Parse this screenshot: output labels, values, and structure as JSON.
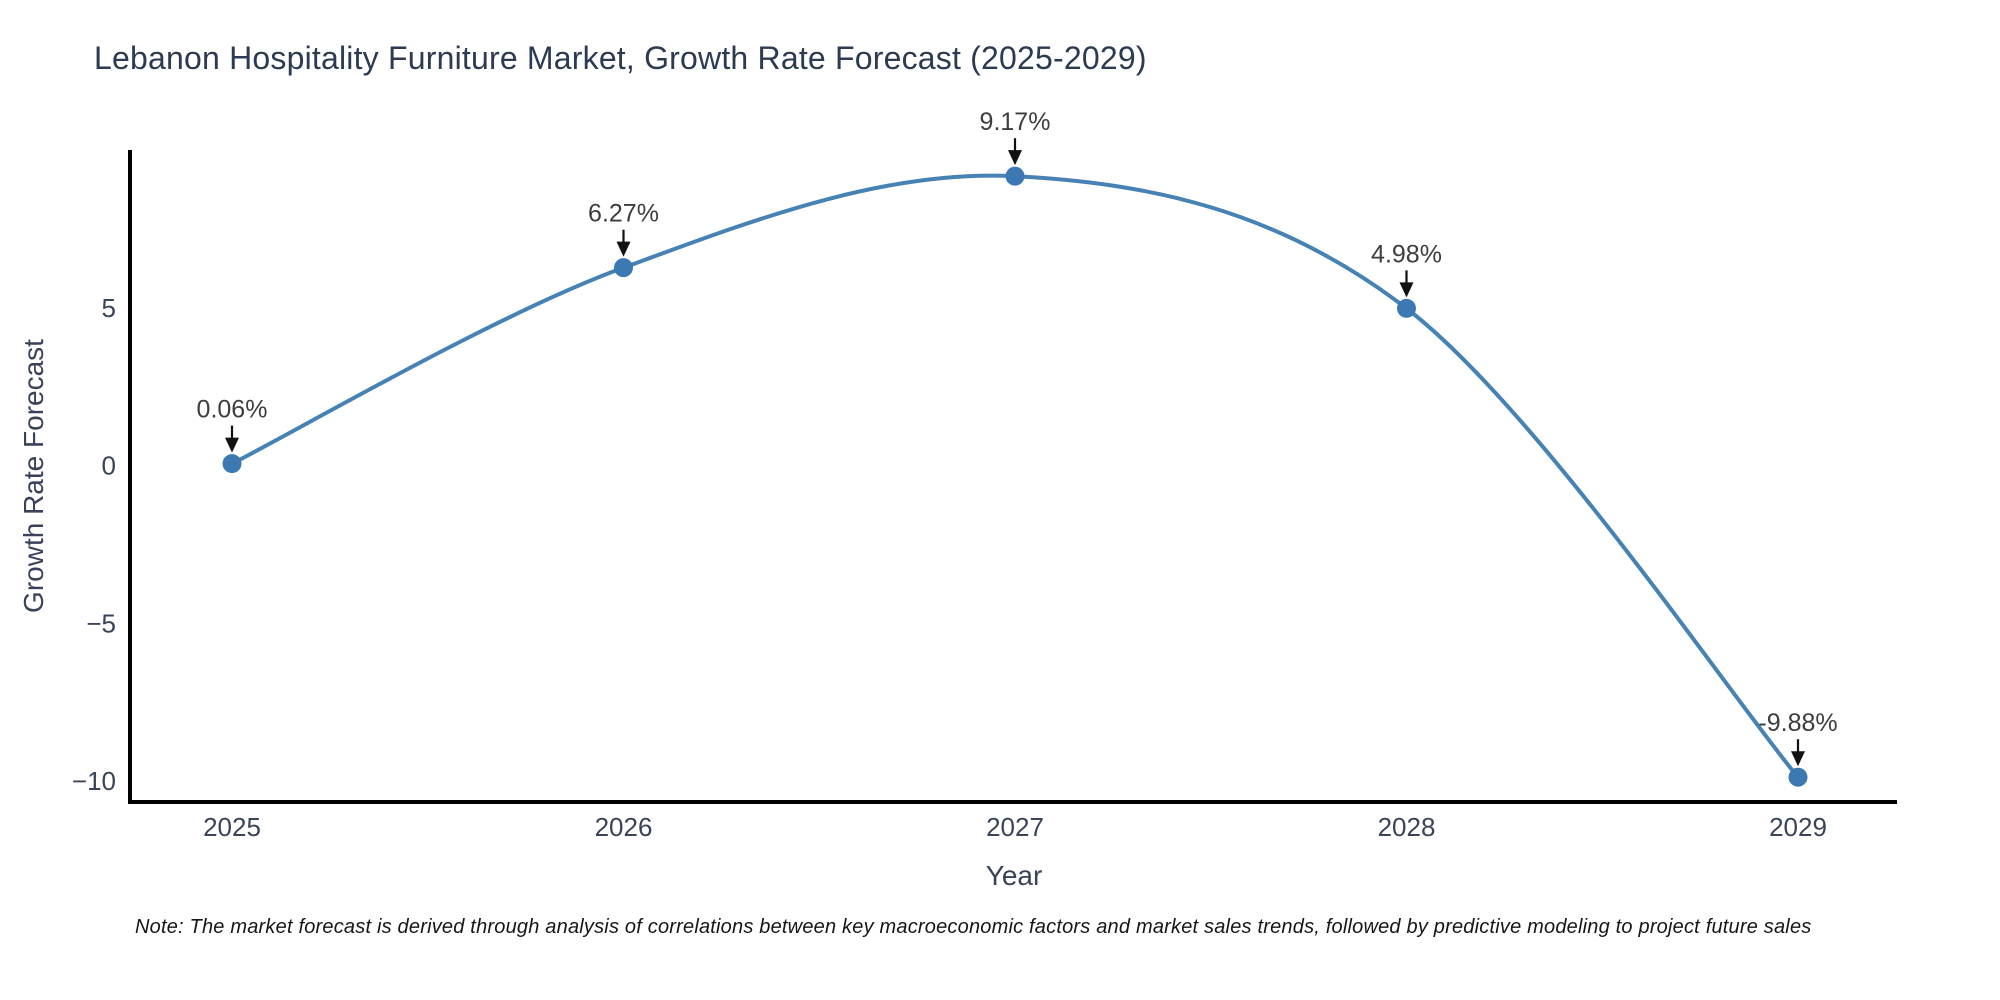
{
  "note": "Note: The market forecast is derived through analysis of correlations between key macroeconomic factors and market sales trends, followed by predictive modeling to project future sales",
  "chart_data": {
    "type": "line",
    "title": "Lebanon Hospitality Furniture Market, Growth Rate Forecast (2025-2029)",
    "xlabel": "Year",
    "ylabel": "Growth Rate Forecast",
    "x": [
      2025,
      2026,
      2027,
      2028,
      2029
    ],
    "values": [
      0.06,
      6.27,
      9.17,
      4.98,
      -9.88
    ],
    "point_labels": [
      "0.06%",
      "6.27%",
      "9.17%",
      "4.98%",
      "-9.88%"
    ],
    "xtick_labels": [
      "2025",
      "2026",
      "2027",
      "2028",
      "2029"
    ],
    "yticks": [
      5,
      0,
      -5,
      -10
    ],
    "ytick_labels": [
      "5",
      "0",
      "−5",
      "−10"
    ],
    "xlim": [
      2024.74,
      2029.25
    ],
    "ylim": [
      -10.67,
      10.0
    ],
    "grid": false,
    "legend": null,
    "smooth": true,
    "line_color": "#4682b4",
    "marker_color": "#3c79b2",
    "axis_color": "#000000",
    "tick_color": "#3a4459",
    "annotation_color": "#3d3d3d",
    "arrow_color": "#111111",
    "title_color": "#2c3a52",
    "axis_title_color": "#39425a",
    "note_color": "#161616",
    "background_color": "#ffffff"
  }
}
